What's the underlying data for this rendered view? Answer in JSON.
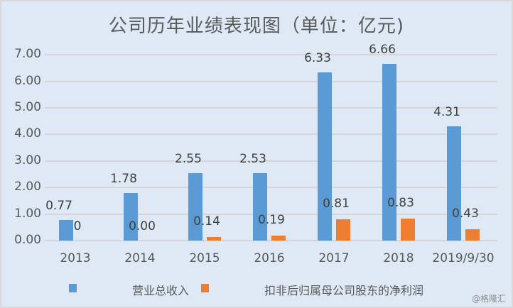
{
  "chart_data": {
    "type": "bar",
    "title": "公司历年业绩表现图（单位：亿元)",
    "categories": [
      "2013",
      "2014",
      "2015",
      "2016",
      "2017",
      "2018",
      "2019/9/30"
    ],
    "series": [
      {
        "name": "营业总收入",
        "color": "#5b9bd5",
        "values": [
          0.77,
          1.78,
          2.55,
          2.53,
          6.33,
          6.66,
          4.31
        ],
        "labels": [
          "0.77",
          "1.78",
          "2.55",
          "2.53",
          "6.33",
          "6.66",
          "4.31"
        ]
      },
      {
        "name": "扣非后归属母公司股东的净利润",
        "color": "#ed7d31",
        "values": [
          0,
          0.0,
          0.14,
          0.19,
          0.81,
          0.83,
          0.43
        ],
        "labels": [
          "0",
          "0.00",
          "0.14",
          "0.19",
          "0.81",
          "0.83",
          "0.43"
        ]
      }
    ],
    "xlabel": "",
    "ylabel": "",
    "ylim": [
      0,
      7
    ],
    "yticks": [
      "0.00",
      "1.00",
      "2.00",
      "3.00",
      "4.00",
      "5.00",
      "6.00",
      "7.00"
    ],
    "grid": true,
    "legend_position": "bottom"
  },
  "watermark": "@格隆汇"
}
